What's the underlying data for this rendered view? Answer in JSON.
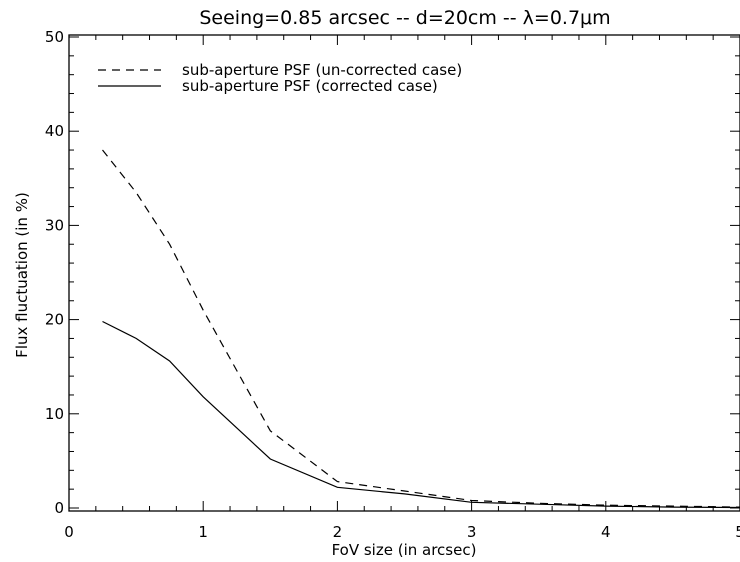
{
  "chart_data": {
    "type": "line",
    "title": "Seeing=0.85 arcsec -- d=20cm -- λ=0.7μm",
    "xlabel": "FoV size (in arcsec)",
    "ylabel": "Flux fluctuation (in %)",
    "xlim": [
      0,
      5
    ],
    "ylim": [
      0,
      50
    ],
    "xticks": [
      0,
      1,
      2,
      3,
      4,
      5
    ],
    "xtick_labels": [
      "0",
      "1",
      "2",
      "3",
      "4",
      "5"
    ],
    "yticks": [
      0,
      10,
      20,
      30,
      40,
      50
    ],
    "ytick_labels": [
      "0",
      "10",
      "20",
      "30",
      "40",
      "50"
    ],
    "grid": false,
    "legend_position": "top-left",
    "series": [
      {
        "name": "sub-aperture PSF (un-corrected case)",
        "style": "dashed",
        "x": [
          0.25,
          0.5,
          0.75,
          1.0,
          1.5,
          2.0,
          2.5,
          3.0,
          3.5,
          4.0,
          4.5,
          5.0
        ],
        "y": [
          38.0,
          33.5,
          28.0,
          21.0,
          8.2,
          2.8,
          1.8,
          0.8,
          0.5,
          0.3,
          0.2,
          0.1
        ]
      },
      {
        "name": "sub-aperture PSF (corrected case)",
        "style": "solid",
        "x": [
          0.25,
          0.5,
          0.75,
          1.0,
          1.5,
          2.0,
          2.5,
          3.0,
          3.5,
          4.0,
          4.5,
          5.0
        ],
        "y": [
          19.8,
          18.0,
          15.6,
          11.8,
          5.2,
          2.2,
          1.5,
          0.6,
          0.4,
          0.2,
          0.1,
          0.05
        ]
      }
    ]
  }
}
